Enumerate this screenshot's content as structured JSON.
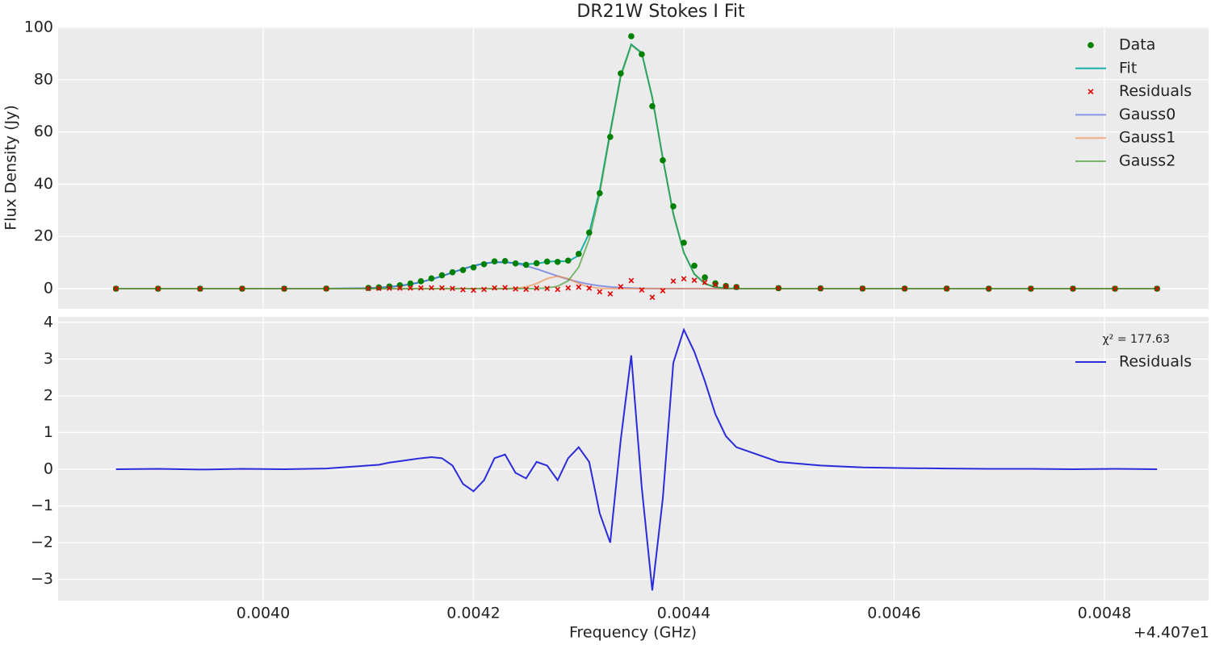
{
  "chart_data": [
    {
      "type": "line",
      "title": "DR21W Stokes I Fit",
      "y_label": "Flux Density (Jy)",
      "x": [
        0.00386,
        0.0039,
        0.00394,
        0.00398,
        0.00402,
        0.00406,
        0.0041,
        0.00411,
        0.00412,
        0.00413,
        0.00414,
        0.00415,
        0.00416,
        0.00417,
        0.00418,
        0.00419,
        0.0042,
        0.00421,
        0.00422,
        0.00423,
        0.00424,
        0.00425,
        0.00426,
        0.00427,
        0.00428,
        0.00429,
        0.0043,
        0.00431,
        0.00432,
        0.00433,
        0.00434,
        0.00435,
        0.00436,
        0.00437,
        0.00438,
        0.00439,
        0.0044,
        0.00441,
        0.00442,
        0.00443,
        0.00444,
        0.00445,
        0.00449,
        0.00453,
        0.00457,
        0.00461,
        0.00465,
        0.00469,
        0.00473,
        0.00477,
        0.00481,
        0.00485
      ],
      "series": [
        {
          "name": "Data",
          "mark": "dot",
          "color": "#008000",
          "values": [
            0,
            0.01,
            -0.01,
            0.01,
            0,
            0.03,
            0.31,
            0.51,
            0.85,
            1.32,
            1.98,
            2.84,
            3.92,
            5.13,
            6.29,
            7.14,
            8.14,
            9.35,
            10.44,
            10.56,
            9.69,
            9.14,
            9.76,
            10.38,
            10.25,
            10.74,
            13.32,
            21.47,
            36.54,
            58.09,
            82.39,
            96.61,
            89.71,
            69.86,
            49.13,
            31.51,
            17.6,
            8.8,
            4.31,
            2.05,
            1.03,
            0.63,
            0.2,
            0.1,
            0.05,
            0.03,
            0.02,
            0.01,
            0.01,
            0,
            0.01,
            0
          ]
        },
        {
          "name": "Fit",
          "mark": "line",
          "color": "#17b3a6",
          "opacity": 1,
          "values": [
            0,
            0,
            0,
            0,
            0,
            0.01,
            0.21,
            0.39,
            0.67,
            1.1,
            1.72,
            2.54,
            3.59,
            4.83,
            6.19,
            7.54,
            8.74,
            9.65,
            10.14,
            10.16,
            9.79,
            9.39,
            9.56,
            10.28,
            10.55,
            10.44,
            12.72,
            21.27,
            37.74,
            60.09,
            81.59,
            93.51,
            90.21,
            73.16,
            49.93,
            28.61,
            13.8,
            5.6,
            1.91,
            0.55,
            0.13,
            0.03,
            0,
            0,
            0,
            0,
            0,
            0,
            0,
            0,
            0,
            0
          ]
        },
        {
          "name": "Residuals",
          "mark": "cross",
          "color": "#e00000",
          "values": [
            0,
            0.01,
            -0.01,
            0.01,
            0,
            0.02,
            0.1,
            0.12,
            0.18,
            0.22,
            0.26,
            0.3,
            0.33,
            0.3,
            0.1,
            -0.4,
            -0.6,
            -0.3,
            0.3,
            0.4,
            -0.1,
            -0.25,
            0.2,
            0.1,
            -0.3,
            0.3,
            0.6,
            0.2,
            -1.2,
            -2.0,
            0.8,
            3.1,
            -0.5,
            -3.3,
            -0.8,
            2.9,
            3.8,
            3.2,
            2.4,
            1.5,
            0.9,
            0.6,
            0.2,
            0.1,
            0.05,
            0.03,
            0.02,
            0.01,
            0.01,
            0,
            0.01,
            0
          ]
        },
        {
          "name": "Gauss0",
          "mark": "line",
          "color": "#5566dd",
          "opacity": 0.65,
          "values": [
            0,
            0,
            0,
            0,
            0,
            0.01,
            0.21,
            0.39,
            0.67,
            1.1,
            1.72,
            2.54,
            3.59,
            4.83,
            6.19,
            7.54,
            8.74,
            9.65,
            10.14,
            10.14,
            9.65,
            8.74,
            7.54,
            6.19,
            4.83,
            3.59,
            2.54,
            1.72,
            1.1,
            0.67,
            0.39,
            0.21,
            0.11,
            0.06,
            0.03,
            0.01,
            0,
            0,
            0,
            0,
            0,
            0,
            0,
            0,
            0,
            0,
            0,
            0,
            0,
            0,
            0,
            0
          ]
        },
        {
          "name": "Gauss1",
          "mark": "line",
          "color": "#f08c4a",
          "opacity": 0.65,
          "values": [
            0,
            0,
            0,
            0,
            0,
            0,
            0,
            0,
            0,
            0,
            0,
            0,
            0,
            0,
            0,
            0,
            0,
            0,
            0,
            0.02,
            0.14,
            0.65,
            1.97,
            3.85,
            4.8,
            3.85,
            1.97,
            0.65,
            0.14,
            0.02,
            0,
            0,
            0,
            0,
            0,
            0,
            0,
            0,
            0,
            0,
            0,
            0,
            0,
            0,
            0,
            0,
            0,
            0,
            0,
            0,
            0,
            0
          ]
        },
        {
          "name": "Gauss2",
          "mark": "line",
          "color": "#3f9a2f",
          "opacity": 0.65,
          "values": [
            0,
            0,
            0,
            0,
            0,
            0,
            0,
            0,
            0,
            0,
            0,
            0,
            0,
            0,
            0,
            0,
            0,
            0,
            0,
            0,
            0,
            0,
            0.05,
            0.24,
            0.92,
            3.0,
            8.21,
            18.9,
            36.5,
            59.4,
            81.2,
            93.3,
            90.1,
            73.1,
            49.9,
            28.6,
            13.8,
            5.6,
            1.91,
            0.55,
            0.13,
            0.03,
            0,
            0,
            0,
            0,
            0,
            0,
            0,
            0,
            0,
            0
          ]
        }
      ],
      "xlim": [
        0.003805,
        0.004899
      ],
      "ylim": [
        -7.7,
        100.3
      ],
      "xticks": [
        0.004,
        0.0042,
        0.0044,
        0.0046,
        0.0048
      ],
      "show_xtick_labels": false,
      "yticks": [
        0,
        20,
        40,
        60,
        80,
        100
      ],
      "grid": true,
      "legend": "upper right"
    },
    {
      "type": "line",
      "x_label": "Frequency (GHz)",
      "x_offset_label": "+4.407e1",
      "annotation": "χ² = 177.63",
      "x": [
        0.00386,
        0.0039,
        0.00394,
        0.00398,
        0.00402,
        0.00406,
        0.0041,
        0.00411,
        0.00412,
        0.00413,
        0.00414,
        0.00415,
        0.00416,
        0.00417,
        0.00418,
        0.00419,
        0.0042,
        0.00421,
        0.00422,
        0.00423,
        0.00424,
        0.00425,
        0.00426,
        0.00427,
        0.00428,
        0.00429,
        0.0043,
        0.00431,
        0.00432,
        0.00433,
        0.00434,
        0.00435,
        0.00436,
        0.00437,
        0.00438,
        0.00439,
        0.0044,
        0.00441,
        0.00442,
        0.00443,
        0.00444,
        0.00445,
        0.00449,
        0.00453,
        0.00457,
        0.00461,
        0.00465,
        0.00469,
        0.00473,
        0.00477,
        0.00481,
        0.00485
      ],
      "series": [
        {
          "name": "Residuals",
          "mark": "line",
          "color": "#2b2bd9",
          "opacity": 1,
          "values": [
            0,
            0.01,
            -0.01,
            0.01,
            0,
            0.02,
            0.1,
            0.12,
            0.18,
            0.22,
            0.26,
            0.3,
            0.33,
            0.3,
            0.1,
            -0.4,
            -0.6,
            -0.3,
            0.3,
            0.4,
            -0.1,
            -0.25,
            0.2,
            0.1,
            -0.3,
            0.3,
            0.6,
            0.2,
            -1.2,
            -2.0,
            0.8,
            3.1,
            -0.5,
            -3.3,
            -0.8,
            2.9,
            3.8,
            3.2,
            2.4,
            1.5,
            0.9,
            0.6,
            0.2,
            0.1,
            0.05,
            0.03,
            0.02,
            0.01,
            0.01,
            0,
            0.01,
            0
          ]
        }
      ],
      "xlim": [
        0.003805,
        0.004899
      ],
      "ylim": [
        -3.58,
        4.15
      ],
      "xticks": [
        {
          "value": 0.004,
          "label": "0.0040"
        },
        {
          "value": 0.0042,
          "label": "0.0042"
        },
        {
          "value": 0.0044,
          "label": "0.0044"
        },
        {
          "value": 0.0046,
          "label": "0.0046"
        },
        {
          "value": 0.0048,
          "label": "0.0048"
        }
      ],
      "show_xtick_labels": true,
      "yticks": [
        {
          "value": -3,
          "label": "−3"
        },
        {
          "value": -2,
          "label": "−2"
        },
        {
          "value": -1,
          "label": "−1"
        },
        0,
        1,
        2,
        3,
        4
      ],
      "grid": true,
      "legend": "upper right"
    }
  ]
}
